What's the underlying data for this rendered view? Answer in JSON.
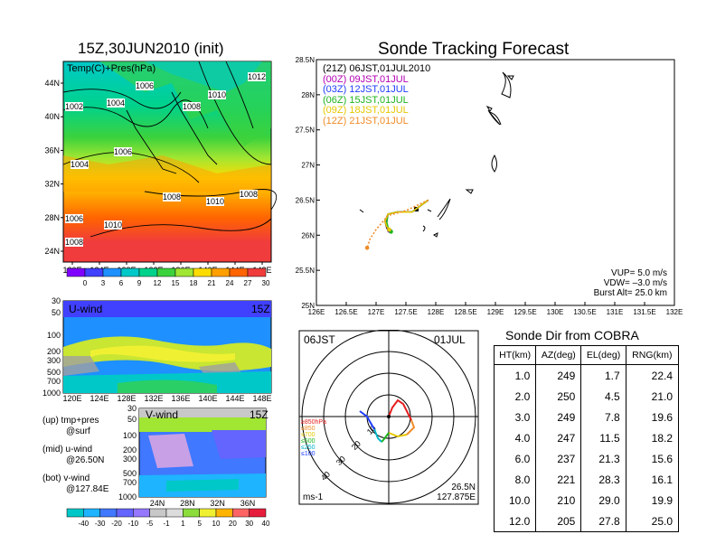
{
  "chart_data": [
    {
      "panel": "surface-map",
      "type": "heatmap",
      "title": "15Z,30JUN2010 (init)",
      "annotation": "Temp(C)+Pres(hPa)",
      "x_ticks": [
        "120E",
        "124E",
        "128E",
        "132E",
        "136E",
        "140E",
        "144E",
        "148E"
      ],
      "y_ticks": [
        "24N",
        "28N",
        "32N",
        "36N",
        "40N",
        "44N"
      ],
      "isobar_labels": [
        "1006",
        "1002",
        "1004",
        "1010",
        "1008",
        "1012",
        "1004",
        "1006",
        "1008",
        "1010",
        "1008",
        "1006",
        "1010",
        "1008"
      ],
      "colorbar": {
        "ticks": [
          "0",
          "3",
          "6",
          "9",
          "12",
          "15",
          "18",
          "21",
          "24",
          "27",
          "30"
        ],
        "colors": [
          "#7f00ff",
          "#4040ff",
          "#1e90ff",
          "#00c8c8",
          "#00d28c",
          "#3cd23c",
          "#a0e632",
          "#ffdc00",
          "#ffa000",
          "#ff6400",
          "#f03c3c"
        ]
      }
    },
    {
      "panel": "u-wind",
      "type": "heatmap",
      "annotation": "U-wind",
      "time_label": "15Z",
      "x_ticks": [
        "120E",
        "124E",
        "128E",
        "132E",
        "136E",
        "140E",
        "144E",
        "148E"
      ],
      "y_ticks": [
        "30",
        "50",
        "100",
        "200",
        "300",
        "500",
        "700",
        "1000"
      ]
    },
    {
      "panel": "v-wind",
      "type": "heatmap",
      "annotation": "V-wind",
      "time_label": "15Z",
      "x_ticks": [
        "24N",
        "28N",
        "32N",
        "36N"
      ],
      "y_ticks": [
        "30",
        "50",
        "100",
        "200",
        "300",
        "500",
        "700",
        "1000"
      ],
      "colorbar": {
        "ticks": [
          "-40",
          "-30",
          "-20",
          "-10",
          "-5",
          "-1",
          "1",
          "5",
          "10",
          "20",
          "30",
          "40"
        ],
        "colors": [
          "#00c8c8",
          "#1eb4ff",
          "#4078ff",
          "#6464ff",
          "#9678ff",
          "#c8c8c8",
          "#dcdcdc",
          "#8cdc3c",
          "#f0f032",
          "#ffb400",
          "#ff6464",
          "#e61e3c"
        ]
      }
    },
    {
      "panel": "track",
      "type": "line",
      "title": "Sonde Tracking Forecast",
      "xlim": [
        126,
        132
      ],
      "ylim": [
        25,
        28.5
      ],
      "x_ticks": [
        "126E",
        "126.5E",
        "127E",
        "127.5E",
        "128E",
        "128.5E",
        "129E",
        "129.5E",
        "130E",
        "130.5E",
        "131E",
        "131.5E",
        "132E"
      ],
      "y_ticks": [
        "25N",
        "25.5N",
        "26N",
        "26.5N",
        "27N",
        "27.5N",
        "28N",
        "28.5N"
      ],
      "legend": [
        {
          "text": "(21Z) 06JST,01JUL2010",
          "color": "#000000"
        },
        {
          "text": "(00Z) 09JST,01JUL",
          "color": "#b400b4"
        },
        {
          "text": "(03Z) 12JST,01JUL",
          "color": "#1e3cff"
        },
        {
          "text": "(06Z) 15JST,01JUL",
          "color": "#1eb41e"
        },
        {
          "text": "(09Z) 18JST,01JUL",
          "color": "#e6c800"
        },
        {
          "text": "(12Z) 21JST,01JUL",
          "color": "#f08c28"
        }
      ],
      "series": [
        {
          "name": "(21Z) 06JST,01JUL2010",
          "color": "#000000",
          "x": [
            127.875,
            127.6,
            127.35,
            127.2,
            127.15,
            127.18,
            127.22
          ],
          "y": [
            26.5,
            26.33,
            26.33,
            26.3,
            26.2,
            26.1,
            26.07
          ]
        },
        {
          "name": "(00Z) 09JST,01JUL",
          "color": "#b400b4",
          "x": [
            127.875,
            127.6,
            127.35,
            127.2,
            127.16,
            127.19,
            127.23
          ],
          "y": [
            26.5,
            26.33,
            26.33,
            26.3,
            26.2,
            26.1,
            26.06
          ]
        },
        {
          "name": "(03Z) 12JST,01JUL",
          "color": "#1e3cff",
          "x": [
            127.875,
            127.6,
            127.35,
            127.2,
            127.17,
            127.2,
            127.24
          ],
          "y": [
            26.5,
            26.33,
            26.33,
            26.3,
            26.19,
            26.09,
            26.06
          ]
        },
        {
          "name": "(06Z) 15JST,01JUL",
          "color": "#1eb41e",
          "x": [
            127.875,
            127.6,
            127.35,
            127.2,
            127.18,
            127.21,
            127.25
          ],
          "y": [
            26.5,
            26.33,
            26.33,
            26.3,
            26.18,
            26.08,
            26.05
          ]
        },
        {
          "name": "(09Z) 18JST,01JUL",
          "color": "#e6c800",
          "x": [
            127.875,
            127.6,
            127.35,
            127.2,
            127.15,
            127.18,
            127.22
          ],
          "y": [
            26.5,
            26.33,
            26.33,
            26.3,
            26.2,
            26.12,
            26.08
          ]
        },
        {
          "name": "(12Z) 21JST,01JUL",
          "color": "#f08c28",
          "x": [
            127.875,
            127.5,
            127.2,
            127.0,
            126.9,
            126.85
          ],
          "y": [
            26.5,
            26.35,
            26.28,
            26.08,
            25.95,
            25.82
          ]
        }
      ],
      "notes": [
        "VUP= 5.0 m/s",
        "VDW= –3.0 m/s",
        "Burst Alt= 25.0 km"
      ]
    },
    {
      "panel": "hodograph",
      "type": "line",
      "left_label": "06JST",
      "right_label": "01JUL",
      "ring_labels": [
        "10",
        "20",
        "30",
        "40"
      ],
      "legend": [
        "≥850hPa",
        "≤850",
        "≤700",
        "≤500",
        "≤250",
        "≤100"
      ],
      "legend_colors": [
        "#e61e1e",
        "#f08c28",
        "#e6c800",
        "#1eb41e",
        "#00b4c8",
        "#1e3cff"
      ],
      "corner_bl": "ms-1",
      "corner_br": [
        "26.5N",
        "127.875E"
      ]
    }
  ],
  "sonde_dir": {
    "title": "Sonde Dir from COBRA",
    "headers": [
      "HT(km)",
      "AZ(deg)",
      "EL(deg)",
      "RNG(km)"
    ],
    "rows": [
      [
        "1.0",
        "249",
        "1.7",
        "22.4"
      ],
      [
        "2.0",
        "250",
        "4.5",
        "21.0"
      ],
      [
        "3.0",
        "249",
        "7.8",
        "19.6"
      ],
      [
        "4.0",
        "247",
        "11.5",
        "18.2"
      ],
      [
        "6.0",
        "237",
        "21.3",
        "15.6"
      ],
      [
        "8.0",
        "221",
        "28.3",
        "16.1"
      ],
      [
        "10.0",
        "210",
        "29.0",
        "19.9"
      ],
      [
        "12.0",
        "205",
        "27.8",
        "25.0"
      ]
    ]
  },
  "left_notes": {
    "up": [
      "(up) tmp+pres",
      "@surf"
    ],
    "mid": [
      "(mid) u-wind",
      "@26.50N"
    ],
    "bot": [
      "(bot) v-wind",
      "@127.84E"
    ]
  }
}
